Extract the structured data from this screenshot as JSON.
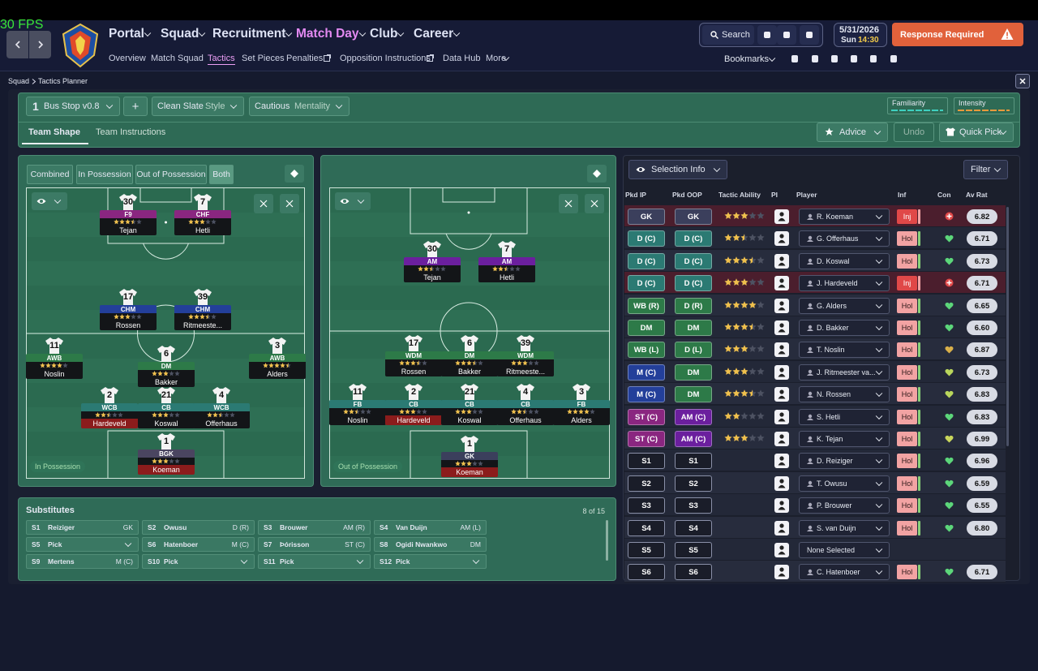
{
  "fps": "30 FPS",
  "nav": {
    "main": [
      "Portal",
      "Squad",
      "Recruitment",
      "Match Day",
      "Club",
      "Career"
    ],
    "sub": [
      "Overview",
      "Match Squad",
      "Tactics",
      "Set Pieces",
      "Penalties",
      "Opposition Instructions",
      "Data Hub",
      "More"
    ],
    "search": "Search",
    "date": "5/31/2026",
    "day": "Sun",
    "time": "14:30",
    "alert": "Response Required",
    "bookmarks": "Bookmarks"
  },
  "breadcrumb": [
    "Squad",
    "Tactics Planner"
  ],
  "tactic_bar": {
    "slot": "1",
    "name": "Bus Stop v0.8",
    "add": "+",
    "style": "Clean Slate",
    "style_label": "Style",
    "mentality": "Cautious",
    "mentality_label": "Mentality",
    "familiarity": "Familiarity",
    "intensity": "Intensity"
  },
  "tabs": [
    "Team Shape",
    "Team Instructions"
  ],
  "actions": [
    "Advice",
    "Undo",
    "Quick Pick"
  ],
  "shape_filters": [
    "Combined",
    "In Possession",
    "Out of Possession",
    "Both"
  ],
  "role_colors": {
    "GK": "#3b3f5c",
    "BGK": "#4a4560",
    "D (C)": "#2b7a73",
    "D (R)": "#2d7a48",
    "D (L)": "#2d7a48",
    "WB (R)": "#2d7a48",
    "WB (L)": "#2d7a48",
    "DM": "#2d7a48",
    "M (C)": "#233f9a",
    "ST (C)": "#8a2680",
    "AM (C)": "#6b1f9e",
    "F9": "#8a2680",
    "CHF": "#8a2680",
    "AM": "#6b1f9e",
    "CHM": "#233f9a",
    "AWB": "#2d7a48",
    "WCB": "#2b7a73",
    "CB": "#2b7a73",
    "FB": "#2b7a73",
    "WDM": "#2d7a48"
  },
  "pitches": [
    {
      "label": "In Possession",
      "players": [
        {
          "number": "30",
          "role": "F9",
          "name": "Tejan",
          "stars": 3.5
        },
        {
          "number": "7",
          "role": "CHF",
          "name": "Hetli",
          "stars": 3
        },
        {
          "number": "17",
          "role": "CHM",
          "name": "Rossen",
          "stars": 3
        },
        {
          "number": "39",
          "role": "CHM",
          "name": "Ritmeeste...",
          "stars": 3.5
        },
        {
          "number": "11",
          "role": "AWB",
          "name": "Noslin",
          "stars": 4
        },
        {
          "number": "6",
          "role": "DM",
          "name": "Bakker",
          "stars": 3
        },
        {
          "number": "3",
          "role": "AWB",
          "name": "Alders",
          "stars": 4.5
        },
        {
          "number": "2",
          "role": "WCB",
          "name": "Hardeveld",
          "stars": 2.5,
          "color": "#8b1c1c"
        },
        {
          "number": "21",
          "role": "CB",
          "name": "Koswal",
          "stars": 3
        },
        {
          "number": "4",
          "role": "WCB",
          "name": "Offerhaus",
          "stars": 2.5
        },
        {
          "number": "1",
          "role": "BGK",
          "name": "Koeman",
          "stars": 3,
          "color": "#8b1c1c"
        }
      ]
    },
    {
      "label": "Out of Possession",
      "players": [
        {
          "number": "30",
          "role": "AM",
          "name": "Tejan",
          "stars": 2.5
        },
        {
          "number": "7",
          "role": "AM",
          "name": "Hetli",
          "stars": 2.5
        },
        {
          "number": "17",
          "role": "WDM",
          "name": "Rossen",
          "stars": 3.5
        },
        {
          "number": "6",
          "role": "DM",
          "name": "Bakker",
          "stars": 3.5
        },
        {
          "number": "39",
          "role": "WDM",
          "name": "Ritmeeste...",
          "stars": 3
        },
        {
          "number": "11",
          "role": "FB",
          "name": "Noslin",
          "stars": 2.5
        },
        {
          "number": "2",
          "role": "CB",
          "name": "Hardeveld",
          "stars": 3,
          "color": "#8b1c1c"
        },
        {
          "number": "21",
          "role": "CB",
          "name": "Koswal",
          "stars": 3
        },
        {
          "number": "4",
          "role": "CB",
          "name": "Offerhaus",
          "stars": 2.5
        },
        {
          "number": "3",
          "role": "FB",
          "name": "Alders",
          "stars": 4
        },
        {
          "number": "1",
          "role": "GK",
          "name": "Koeman",
          "stars": 3,
          "color": "#8b1c1c"
        }
      ]
    }
  ],
  "substitutes": {
    "title": "Substitutes",
    "count": "8 of 15",
    "slots": [
      {
        "slot": "S1",
        "name": "Reiziger",
        "position": "GK"
      },
      {
        "slot": "S2",
        "name": "Owusu",
        "position": "D (R)"
      },
      {
        "slot": "S3",
        "name": "Brouwer",
        "position": "AM (R)"
      },
      {
        "slot": "S4",
        "name": "Van Duijn",
        "position": "AM (L)"
      },
      {
        "slot": "S5",
        "name": "Pick"
      },
      {
        "slot": "S6",
        "name": "Hatenboer",
        "position": "M (C)"
      },
      {
        "slot": "S7",
        "name": "Þórisson",
        "position": "ST (C)"
      },
      {
        "slot": "S8",
        "name": "Ogidi Nwankwo",
        "position": "DM"
      },
      {
        "slot": "S9",
        "name": "Mertens",
        "position": "M (C)"
      },
      {
        "slot": "S10",
        "name": "Pick"
      },
      {
        "slot": "S11",
        "name": "Pick"
      },
      {
        "slot": "S12",
        "name": "Pick"
      }
    ]
  },
  "selection": {
    "view": "Selection Info",
    "filter": "Filter",
    "headers": [
      "Pkd IP",
      "Pkd OOP",
      "Tactic Ability",
      "PI",
      "Player",
      "Inf",
      "Con",
      "Av Rat"
    ],
    "rows": [
      {
        "ip": "GK",
        "oop": "GK",
        "stars": 3,
        "player": "R. Koeman",
        "inf": "Inj",
        "rating": "6.82",
        "row_color": "#4b1e2d",
        "con": "#e04848"
      },
      {
        "ip": "D (C)",
        "oop": "D (C)",
        "stars": 2.5,
        "player": "G. Offerhaus",
        "inf": "Hol",
        "rating": "6.71",
        "con": "#5cd67a"
      },
      {
        "ip": "D (C)",
        "oop": "D (C)",
        "stars": 3.5,
        "player": "D. Koswal",
        "inf": "Hol",
        "rating": "6.73",
        "con": "#5cd67a"
      },
      {
        "ip": "D (C)",
        "oop": "D (C)",
        "stars": 3,
        "player": "J. Hardeveld",
        "inf": "Inj",
        "rating": "6.71",
        "row_color": "#4b1e2d",
        "con": "#e04848"
      },
      {
        "ip": "WB (R)",
        "oop": "D (R)",
        "stars": 4,
        "player": "G. Alders",
        "inf": "Hol",
        "rating": "6.65",
        "con": "#5cd67a"
      },
      {
        "ip": "DM",
        "oop": "DM",
        "stars": 3.5,
        "player": "D. Bakker",
        "inf": "Hol",
        "rating": "6.60",
        "con": "#5cd67a"
      },
      {
        "ip": "WB (L)",
        "oop": "D (L)",
        "stars": 3,
        "player": "T. Noslin",
        "inf": "Hol",
        "rating": "6.87",
        "con": "#d9b04a"
      },
      {
        "ip": "M (C)",
        "oop": "DM",
        "stars": 3,
        "player": "J. Ritmeester va...",
        "inf": "Hol",
        "rating": "6.73",
        "con": "#b9d65c"
      },
      {
        "ip": "M (C)",
        "oop": "DM",
        "stars": 3.5,
        "player": "N. Rossen",
        "inf": "Hol",
        "rating": "6.83",
        "con": "#b9d65c"
      },
      {
        "ip": "ST (C)",
        "oop": "AM (C)",
        "stars": 2,
        "player": "S. Hetli",
        "inf": "Hol",
        "rating": "6.83",
        "con": "#5cd67a"
      },
      {
        "ip": "ST (C)",
        "oop": "AM (C)",
        "stars": 3,
        "player": "K. Tejan",
        "inf": "Hol",
        "rating": "6.99",
        "con": "#c9d65c"
      },
      {
        "ip": "S1",
        "oop": "S1",
        "player": "D. Reiziger",
        "inf": "Hol",
        "rating": "6.96",
        "con": "#5cd67a"
      },
      {
        "ip": "S2",
        "oop": "S2",
        "player": "T. Owusu",
        "inf": "Hol",
        "rating": "6.59",
        "con": "#5cd67a"
      },
      {
        "ip": "S3",
        "oop": "S3",
        "player": "P. Brouwer",
        "inf": "Hol",
        "rating": "6.55",
        "con": "#5cd67a"
      },
      {
        "ip": "S4",
        "oop": "S4",
        "player": "S. van Duijn",
        "inf": "Hol",
        "rating": "6.80",
        "con": "#5cd67a"
      },
      {
        "ip": "S5",
        "oop": "S5",
        "player": "None Selected"
      },
      {
        "ip": "S6",
        "oop": "S6",
        "player": "C. Hatenboer",
        "inf": "Hol",
        "rating": "6.71",
        "con": "#5cd67a"
      }
    ]
  }
}
